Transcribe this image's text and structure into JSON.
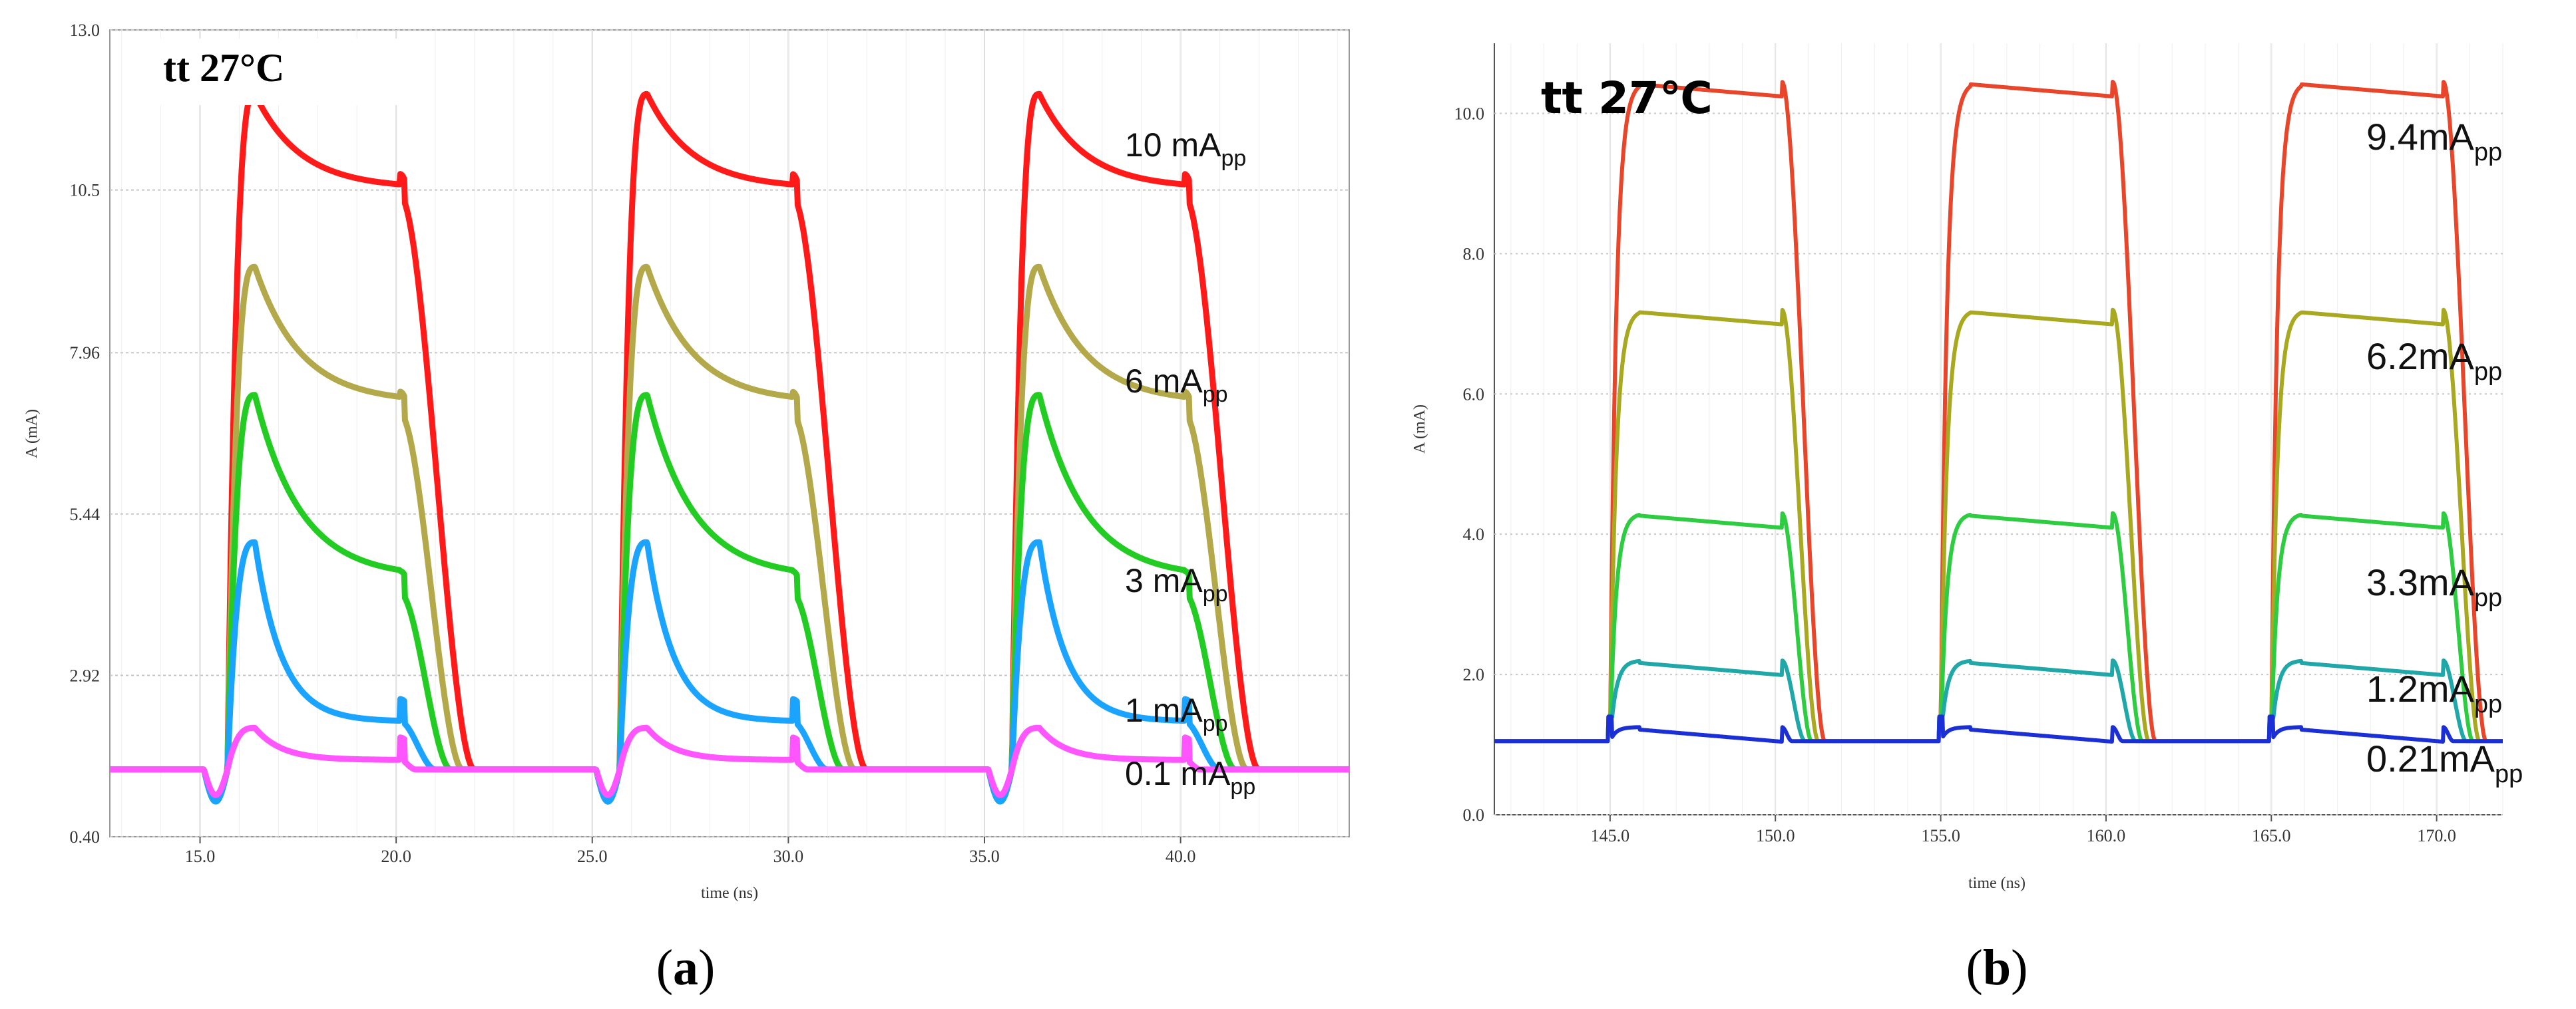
{
  "chart_data": [
    {
      "id": "a",
      "type": "line",
      "title": "tt 27°C",
      "caption_open": "(",
      "caption_letter": "a",
      "caption_close": ")",
      "xlabel": "time (ns)",
      "ylabel": "A (mA)",
      "xlim": [
        12.7,
        44.3
      ],
      "ylim": [
        0.4,
        13.0
      ],
      "xticks": [
        15.0,
        20.0,
        25.0,
        30.0,
        35.0,
        40.0
      ],
      "xtick_labels": [
        "15.0",
        "20.0",
        "25.0",
        "30.0",
        "35.0",
        "40.0"
      ],
      "yticks": [
        0.4,
        2.92,
        5.44,
        7.96,
        10.5,
        13.0
      ],
      "ytick_labels": [
        "0.40",
        "2.92",
        "5.44",
        "7.96",
        "10.5",
        "13.0"
      ],
      "grid": true,
      "pulse_starts": [
        15.7,
        25.7,
        35.7
      ],
      "pulse_width": 4.4,
      "baseline": 1.45,
      "series": [
        {
          "name": "10 mA",
          "sub": "pp",
          "color": "#ff1a1a",
          "peak": 12.0,
          "plateau_end": 10.4,
          "fall_time": 1.9
        },
        {
          "name": "6 mA",
          "sub": "pp",
          "color": "#b3a84a",
          "peak": 9.3,
          "plateau_end": 7.0,
          "fall_time": 1.6
        },
        {
          "name": "3 mA",
          "sub": "pp",
          "color": "#22cc22",
          "peak": 7.3,
          "plateau_end": 4.2,
          "fall_time": 1.3
        },
        {
          "name": "1 mA",
          "sub": "pp",
          "color": "#1aa3ff",
          "peak": 5.0,
          "plateau_end": 2.2,
          "fall_time": 0.9
        },
        {
          "name": "0.1 mA",
          "sub": "pp",
          "color": "#ff55ff",
          "peak": 2.1,
          "plateau_end": 1.6,
          "fall_time": 0.4
        }
      ]
    },
    {
      "id": "b",
      "type": "line",
      "title": "tt 27℃",
      "caption_open": "(",
      "caption_letter": "b",
      "caption_close": ")",
      "xlabel": "time (ns)",
      "ylabel": "A (mA)",
      "xlim": [
        141.5,
        172.0
      ],
      "ylim": [
        0.0,
        11.0
      ],
      "xticks": [
        145.0,
        150.0,
        155.0,
        160.0,
        165.0,
        170.0
      ],
      "xtick_labels": [
        "145.0",
        "150.0",
        "155.0",
        "160.0",
        "165.0",
        "170.0"
      ],
      "yticks": [
        0.0,
        2.0,
        4.0,
        6.0,
        8.0,
        10.0
      ],
      "ytick_labels": [
        "0.0",
        "2.0",
        "4.0",
        "6.0",
        "8.0",
        "10.0"
      ],
      "grid": true,
      "pulse_starts": [
        145.0,
        155.0,
        165.0
      ],
      "pulse_width": 5.2,
      "baseline": 1.05,
      "series": [
        {
          "name": "9.4mA",
          "sub": "pp",
          "color": "#e8452a",
          "level": 10.45,
          "fall_time": 1.3
        },
        {
          "name": "6.2mA",
          "sub": "pp",
          "color": "#a8a821",
          "level": 7.2,
          "fall_time": 1.1
        },
        {
          "name": "3.3mA",
          "sub": "pp",
          "color": "#2ecc40",
          "level": 4.3,
          "fall_time": 0.9
        },
        {
          "name": "1.2mA",
          "sub": "pp",
          "color": "#20a8a8",
          "level": 2.2,
          "fall_time": 0.7
        },
        {
          "name": "0.21mA",
          "sub": "pp",
          "color": "#1a2fd6",
          "level": 1.25,
          "fall_time": 0.3
        }
      ]
    }
  ]
}
